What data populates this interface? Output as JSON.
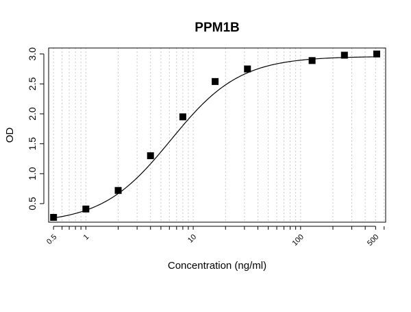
{
  "chart_data": {
    "type": "scatter",
    "title": "PPM1B",
    "xlabel": "Concentration (ng/ml)",
    "ylabel": "OD",
    "x_scale": "log",
    "xlim": [
      0.45,
      620
    ],
    "ylim": [
      0.19,
      3.1
    ],
    "xticks": [
      0.5,
      1,
      10,
      100,
      500
    ],
    "xtick_labels": [
      "0.5",
      "1",
      "10",
      "100",
      "500"
    ],
    "yticks": [
      0.5,
      1.0,
      1.5,
      2.0,
      2.5,
      3.0
    ],
    "ytick_labels": [
      "0.5",
      "1.0",
      "1.5",
      "2.0",
      "2.5",
      "3.0"
    ],
    "grid": "vertical dotted lines at log decades",
    "series": [
      {
        "marker": "square",
        "color": "#000000",
        "x": [
          0.5,
          1,
          2,
          4,
          8,
          16,
          32,
          128,
          256,
          512
        ],
        "y": [
          0.27,
          0.41,
          0.72,
          1.3,
          1.95,
          2.54,
          2.75,
          2.89,
          2.98,
          3.0
        ]
      }
    ],
    "fit_curve": {
      "type": "4PL",
      "color": "#000000",
      "bottom": 0.17,
      "top": 2.96,
      "ec50": 6.2,
      "hill": 1.35
    }
  }
}
